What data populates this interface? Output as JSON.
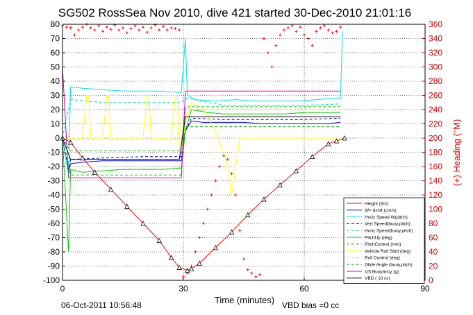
{
  "chart_data": {
    "type": "line",
    "title": "SG502 RossSea Nov 2010, dive 421 started 30-Dec-2010 21:01:16",
    "xlabel": "Time (minutes)",
    "ylabel_right": "(+) Heading (°M)",
    "xlim": [
      0,
      90
    ],
    "ylim": [
      -100,
      80
    ],
    "y2lim": [
      0,
      360
    ],
    "xticks": [
      "0",
      "30",
      "60",
      "90"
    ],
    "yticks": [
      "80",
      "70",
      "60",
      "50",
      "40",
      "30",
      "20",
      "10",
      "0",
      "-10",
      "-20",
      "-30",
      "-40",
      "-50",
      "-60",
      "-70",
      "-80",
      "-90",
      "-100"
    ],
    "y2ticks": [
      "360",
      "340",
      "320",
      "300",
      "280",
      "260",
      "240",
      "220",
      "200",
      "180",
      "160",
      "140",
      "120",
      "100",
      "80",
      "60",
      "40",
      "20",
      "0"
    ],
    "grid": true,
    "legend_position": "bottom-right",
    "footer_left": "06-Oct-2011 10:56:48",
    "footer_right": "VBD bias =0 cc",
    "series": [
      {
        "name": "Height (3m)",
        "color": "#ff0000",
        "style": "solid",
        "x": [
          0,
          2,
          5,
          8,
          12,
          16,
          20,
          24,
          27,
          29,
          31,
          32,
          34,
          38,
          42,
          46,
          50,
          54,
          58,
          62,
          66,
          68,
          70
        ],
        "y": [
          0,
          -3,
          -14,
          -24,
          -36,
          -48,
          -60,
          -72,
          -84,
          -91,
          -93,
          -92,
          -88,
          -77,
          -66,
          -54,
          -43,
          -33,
          -23,
          -13,
          -4,
          -2,
          0
        ]
      },
      {
        "name": "W= dz/dt (cm/s)",
        "color": "#0000ff",
        "style": "solid",
        "x": [
          0,
          1.5,
          2,
          5,
          10,
          15,
          20,
          25,
          29.5,
          30.5,
          32,
          35,
          40,
          45,
          50,
          55,
          60,
          65,
          69
        ],
        "y": [
          0,
          -25,
          -18,
          -17,
          -16,
          -16,
          -16,
          -16,
          -16,
          5,
          12,
          11,
          11,
          11,
          10,
          10,
          10,
          10,
          11
        ]
      },
      {
        "name": "Horiz Speed W(pitch)",
        "color": "#00e0e0",
        "style": "solid",
        "x": [
          0,
          1.5,
          2,
          5,
          10,
          15,
          20,
          25,
          29.5,
          30.5,
          31,
          33,
          38,
          43,
          48,
          53,
          58,
          63,
          67,
          69,
          69.5
        ],
        "y": [
          0,
          -25,
          36,
          35,
          34,
          33,
          33,
          33,
          32,
          70,
          30,
          27,
          26,
          27,
          26,
          26,
          26,
          27,
          28,
          28,
          75
        ]
      },
      {
        "name": "Vert Speed(buoy,pitch)",
        "color": "#0000aa",
        "style": "dashed",
        "x": [
          0,
          1.5,
          2,
          10,
          20,
          29.5,
          30.5,
          32,
          40,
          50,
          60,
          69
        ],
        "y": [
          0,
          -22,
          -15,
          -14,
          -13,
          -13,
          5,
          14,
          13,
          13,
          13,
          14
        ]
      },
      {
        "name": "Horiz Speed(buoy,pitch)",
        "color": "#00d0d0",
        "style": "dashed",
        "x": [
          0,
          2,
          10,
          20,
          29.5,
          31,
          40,
          50,
          60,
          69
        ],
        "y": [
          0,
          27,
          25,
          25,
          25,
          28,
          23,
          23,
          23,
          24
        ]
      },
      {
        "name": "PitchUp (deg)",
        "color": "#00cc00",
        "style": "solid",
        "x": [
          0,
          1.5,
          2,
          5,
          10,
          15,
          20,
          25,
          29.5,
          30.5,
          32,
          36,
          40,
          45,
          50,
          55,
          60,
          65,
          69
        ],
        "y": [
          0,
          -80,
          -22,
          -24,
          -23,
          -22,
          -22,
          -22,
          -21,
          5,
          20,
          18,
          17,
          17,
          17,
          17,
          18,
          18,
          18
        ]
      },
      {
        "name": "PitchControl (mm)",
        "color": "#00aa00",
        "style": "dashed",
        "x": [
          0,
          2,
          29.5,
          30.5,
          69
        ],
        "y": [
          0,
          -9,
          -9,
          8,
          8
        ]
      },
      {
        "name": "Vehicle Roll Stbd (deg)",
        "color": "#ffff00",
        "style": "solid",
        "x": [
          0,
          2,
          5,
          6,
          6.5,
          7,
          10,
          11,
          11.5,
          12,
          20,
          21,
          21.5,
          22,
          27,
          28,
          28.5,
          29,
          29.5,
          30.5,
          32,
          35,
          37,
          40,
          41,
          42,
          43,
          44,
          45,
          50,
          55,
          60,
          62,
          65,
          69
        ],
        "y": [
          0,
          0,
          0,
          30,
          30,
          0,
          0,
          30,
          30,
          0,
          0,
          30,
          30,
          0,
          0,
          30,
          30,
          -8,
          -8,
          10,
          25,
          20,
          10,
          -10,
          -20,
          -40,
          -20,
          0,
          0,
          0,
          0,
          0,
          0,
          0,
          0
        ]
      },
      {
        "name": "Roll Control (deg)",
        "color": "#dddd00",
        "style": "dashed",
        "x": [
          0,
          2,
          29.5,
          30.5,
          69
        ],
        "y": [
          0,
          -1,
          -1,
          20,
          20
        ]
      },
      {
        "name": "Glide Angle (buoy,pitch)",
        "color": "#00cc00",
        "style": "dashed",
        "x": [
          0,
          2,
          29.5,
          30.5,
          69
        ],
        "y": [
          0,
          -26,
          -26,
          22,
          22
        ]
      },
      {
        "name": "1/5 Buoyancy (g)",
        "color": "#cc00cc",
        "style": "solid",
        "x": [
          0,
          1.5,
          2,
          29.5,
          30.5,
          69
        ],
        "y": [
          50,
          -28,
          -28,
          -28,
          33,
          33
        ]
      },
      {
        "name": "VBD ( 10 cc)",
        "color": "#000000",
        "style": "solid",
        "x": [
          0,
          2,
          29,
          30.5,
          32,
          69
        ],
        "y": [
          0,
          -15,
          -15,
          15,
          15,
          15
        ]
      }
    ],
    "heading": {
      "name": "(+) Heading (°M)",
      "color": "#ff0000",
      "x": [
        0,
        1,
        2,
        3,
        4,
        5,
        6,
        7,
        8,
        9,
        10,
        11,
        12,
        13,
        14,
        15,
        16,
        17,
        18,
        19,
        20,
        21,
        22,
        23,
        24,
        25,
        26,
        27,
        28,
        29,
        30,
        31,
        32,
        33,
        34,
        35,
        36,
        37,
        38,
        39,
        40,
        41,
        42,
        43,
        44,
        45,
        46,
        47,
        48,
        49,
        50,
        51,
        52,
        53,
        54,
        55,
        56,
        57,
        58,
        59,
        60,
        61,
        62,
        63,
        64,
        65,
        66,
        67,
        68,
        69
      ],
      "y": [
        358,
        356,
        355,
        345,
        352,
        356,
        360,
        355,
        352,
        358,
        350,
        356,
        353,
        359,
        352,
        355,
        348,
        354,
        358,
        352,
        356,
        349,
        355,
        359,
        352,
        357,
        352,
        355,
        354,
        352,
        5,
        10,
        20,
        40,
        60,
        80,
        100,
        120,
        140,
        160,
        175,
        170,
        150,
        120,
        70,
        30,
        15,
        10,
        5,
        8,
        340,
        320,
        300,
        330,
        345,
        352,
        355,
        358,
        350,
        356,
        345,
        340,
        330,
        350,
        355,
        358,
        352,
        348,
        350,
        356
      ]
    }
  }
}
